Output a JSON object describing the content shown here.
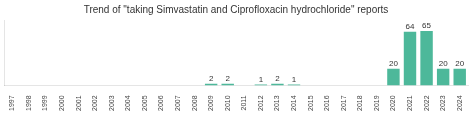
{
  "chart_data": {
    "type": "bar",
    "title": "Trend of \"taking Simvastatin and Ciprofloxacin hydrochloride\" reports",
    "categories": [
      "1997",
      "1998",
      "1999",
      "2000",
      "2001",
      "2002",
      "2003",
      "2004",
      "2005",
      "2006",
      "2007",
      "2008",
      "2009",
      "2010",
      "2011",
      "2012",
      "2013",
      "2014",
      "2015",
      "2016",
      "2017",
      "2018",
      "2019",
      "2020",
      "2021",
      "2022",
      "2023",
      "2024"
    ],
    "values": [
      0,
      0,
      0,
      0,
      0,
      0,
      0,
      0,
      0,
      0,
      0,
      0,
      2,
      2,
      0,
      1,
      2,
      1,
      0,
      0,
      0,
      0,
      0,
      20,
      64,
      65,
      20,
      20
    ],
    "color": "#4db89a",
    "ylim": [
      0,
      78
    ],
    "grid": false,
    "data_labels": true,
    "tick_labels": "x"
  }
}
